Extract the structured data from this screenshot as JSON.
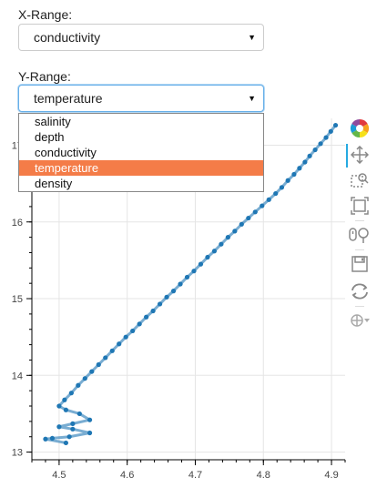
{
  "x_range": {
    "label": "X-Range:",
    "selected": "conductivity"
  },
  "y_range": {
    "label": "Y-Range:",
    "selected": "temperature",
    "options": [
      "salinity",
      "depth",
      "conductivity",
      "temperature",
      "density"
    ]
  },
  "toolbar": {
    "tools": [
      "bokeh-logo-icon",
      "pan-icon",
      "box-zoom-icon",
      "zoom-fit-icon",
      "wheel-zoom-icon",
      "save-icon",
      "reset-icon",
      "hover-icon"
    ]
  },
  "colors": {
    "line": "#1f77b4",
    "highlight": "#f47c48",
    "focus": "#66afe9"
  },
  "chart_data": {
    "type": "line",
    "xlabel": "",
    "ylabel": "",
    "xlim": [
      4.46,
      4.92
    ],
    "ylim": [
      12.9,
      17.35
    ],
    "xticks": [
      "4.5",
      "4.6",
      "4.7",
      "4.8",
      "4.9"
    ],
    "xtick_values": [
      4.5,
      4.6,
      4.7,
      4.8,
      4.9
    ],
    "yticks": [
      "13",
      "14",
      "15",
      "16",
      "17"
    ],
    "ytick_values": [
      13,
      14,
      15,
      16,
      17
    ],
    "grid": true,
    "series": [
      {
        "x": [
          4.906,
          4.899,
          4.892,
          4.884,
          4.876,
          4.868,
          4.861,
          4.853,
          4.845,
          4.836,
          4.827,
          4.818,
          4.808,
          4.798,
          4.788,
          4.778,
          4.768,
          4.758,
          4.748,
          4.738,
          4.728,
          4.718,
          4.708,
          4.698,
          4.688,
          4.678,
          4.668,
          4.658,
          4.648,
          4.638,
          4.628,
          4.618,
          4.608,
          4.598,
          4.588,
          4.578,
          4.568,
          4.558,
          4.548,
          4.538,
          4.528,
          4.518,
          4.508,
          4.5,
          4.51,
          4.53,
          4.545,
          4.52,
          4.5,
          4.52,
          4.545,
          4.515,
          4.49,
          4.48,
          4.51
        ],
        "y": [
          17.26,
          17.18,
          17.1,
          17.02,
          16.94,
          16.86,
          16.78,
          16.7,
          16.62,
          16.54,
          16.45,
          16.37,
          16.29,
          16.21,
          16.13,
          16.05,
          15.97,
          15.88,
          15.8,
          15.71,
          15.62,
          15.54,
          15.45,
          15.36,
          15.28,
          15.19,
          15.1,
          15.02,
          14.93,
          14.84,
          14.76,
          14.67,
          14.58,
          14.5,
          14.41,
          14.32,
          14.23,
          14.14,
          14.05,
          13.96,
          13.87,
          13.77,
          13.68,
          13.6,
          13.55,
          13.5,
          13.42,
          13.37,
          13.33,
          13.3,
          13.25,
          13.2,
          13.18,
          13.17,
          13.12
        ]
      }
    ]
  }
}
